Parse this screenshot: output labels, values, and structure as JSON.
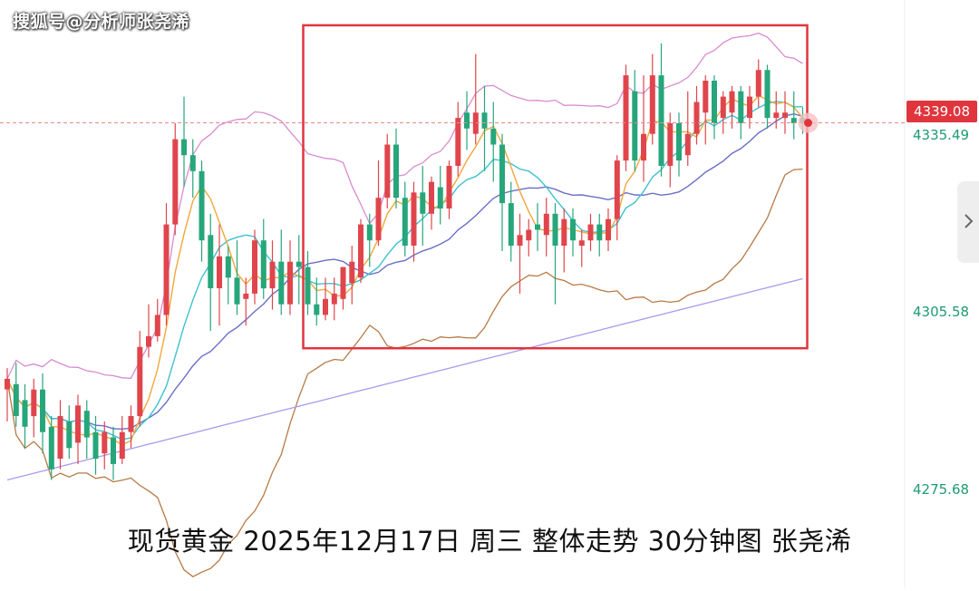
{
  "watermark": "搜狐号@分析师张尧浠",
  "caption": "现货黄金 2025年12月17日 周三 整体走势 30分钟图 张尧浠",
  "price_axis": {
    "current_price": "4339.08",
    "labels": [
      "4335.49",
      "4305.58",
      "4275.68"
    ]
  },
  "colors": {
    "up": "#e0454c",
    "down": "#26a67a",
    "ma5": "#f2a73a",
    "ma10": "#3ec1cf",
    "ma20": "#6a6fc4",
    "ma_long": "#a79af0",
    "boll_upper": "#d98bd0",
    "boll_lower": "#b77a45",
    "highlight_box": "#e0353d",
    "axis_text": "#1e9a72"
  },
  "icons": {
    "side_tab": "chevron-right-icon"
  },
  "chart_data": {
    "type": "candlestick",
    "symbol": "现货黄金",
    "timeframe": "30分钟图",
    "ylim": [
      4260,
      4355
    ],
    "current_price": 4339.08,
    "candles": [
      [
        4289,
        4291,
        4283,
        4293
      ],
      [
        4290,
        4284,
        4282,
        4294
      ],
      [
        4287,
        4282,
        4278,
        4290
      ],
      [
        4284,
        4289,
        4280,
        4291
      ],
      [
        4289,
        4281,
        4277,
        4292
      ],
      [
        4282,
        4274,
        4272,
        4284
      ],
      [
        4276,
        4284,
        4274,
        4287
      ],
      [
        4283,
        4278,
        4276,
        4286
      ],
      [
        4279,
        4286,
        4275,
        4288
      ],
      [
        4285,
        4280,
        4276,
        4287
      ],
      [
        4281,
        4276,
        4273,
        4284
      ],
      [
        4277,
        4281,
        4274,
        4283
      ],
      [
        4280,
        4275,
        4272,
        4282
      ],
      [
        4276,
        4281,
        4275,
        4284
      ],
      [
        4281,
        4284,
        4278,
        4286
      ],
      [
        4284,
        4297,
        4282,
        4300
      ],
      [
        4297,
        4299,
        4295,
        4305
      ],
      [
        4299,
        4303,
        4298,
        4306
      ],
      [
        4303,
        4320,
        4301,
        4324
      ],
      [
        4320,
        4336,
        4318,
        4339
      ],
      [
        4336,
        4333,
        4327,
        4344
      ],
      [
        4333,
        4330,
        4325,
        4336
      ],
      [
        4330,
        4317,
        4313,
        4332
      ],
      [
        4318,
        4308,
        4300,
        4322
      ],
      [
        4308,
        4314,
        4301,
        4320
      ],
      [
        4314,
        4310,
        4305,
        4316
      ],
      [
        4310,
        4305,
        4303,
        4317
      ],
      [
        4306,
        4307,
        4301,
        4310
      ],
      [
        4307,
        4317,
        4305,
        4319
      ],
      [
        4317,
        4308,
        4306,
        4321
      ],
      [
        4308,
        4313,
        4304,
        4317
      ],
      [
        4313,
        4305,
        4303,
        4319
      ],
      [
        4305,
        4313,
        4303,
        4317
      ],
      [
        4313,
        4312,
        4305,
        4318
      ],
      [
        4312,
        4305,
        4303,
        4315
      ],
      [
        4305,
        4303,
        4301,
        4310
      ],
      [
        4303,
        4306,
        4302,
        4310
      ],
      [
        4305,
        4307,
        4302,
        4310
      ],
      [
        4306,
        4312,
        4304,
        4312
      ],
      [
        4309,
        4313,
        4305,
        4316
      ],
      [
        4310,
        4320,
        4309,
        4321
      ],
      [
        4320,
        4317,
        4312,
        4322
      ],
      [
        4317,
        4325,
        4316,
        4332
      ],
      [
        4325,
        4335,
        4323,
        4337
      ],
      [
        4335,
        4325,
        4323,
        4338
      ],
      [
        4325,
        4316,
        4314,
        4328
      ],
      [
        4316,
        4326,
        4313,
        4328
      ],
      [
        4326,
        4322,
        4316,
        4331
      ],
      [
        4322,
        4328,
        4319,
        4329
      ],
      [
        4327,
        4323,
        4320,
        4331
      ],
      [
        4323,
        4331,
        4321,
        4332
      ],
      [
        4331,
        4340,
        4329,
        4343
      ],
      [
        4341,
        4338,
        4334,
        4345
      ],
      [
        4337,
        4341,
        4335,
        4352
      ],
      [
        4341,
        4338,
        4330,
        4346
      ],
      [
        4338,
        4335,
        4328,
        4343
      ],
      [
        4335,
        4324,
        4315,
        4337
      ],
      [
        4324,
        4316,
        4313,
        4328
      ],
      [
        4316,
        4318,
        4307,
        4322
      ],
      [
        4317,
        4319,
        4314,
        4321
      ],
      [
        4320,
        4319,
        4315,
        4324
      ],
      [
        4318,
        4322,
        4314,
        4325
      ],
      [
        4322,
        4316,
        4305,
        4324
      ],
      [
        4316,
        4321,
        4311,
        4323
      ],
      [
        4321,
        4317,
        4314,
        4323
      ],
      [
        4316,
        4317,
        4312,
        4319
      ],
      [
        4317,
        4320,
        4315,
        4322
      ],
      [
        4320,
        4317,
        4314,
        4322
      ],
      [
        4317,
        4321,
        4315,
        4323
      ],
      [
        4321,
        4332,
        4317,
        4333
      ],
      [
        4332,
        4348,
        4330,
        4350
      ],
      [
        4345,
        4332,
        4330,
        4349
      ],
      [
        4332,
        4337,
        4328,
        4348
      ],
      [
        4337,
        4348,
        4335,
        4352
      ],
      [
        4348,
        4331,
        4329,
        4354
      ],
      [
        4331,
        4339,
        4327,
        4341
      ],
      [
        4339,
        4332,
        4329,
        4341
      ],
      [
        4333,
        4337,
        4331,
        4345
      ],
      [
        4337,
        4343,
        4335,
        4346
      ],
      [
        4341,
        4347,
        4335,
        4348
      ],
      [
        4347,
        4339,
        4336,
        4348
      ],
      [
        4340,
        4344,
        4337,
        4345
      ],
      [
        4341,
        4345,
        4338,
        4346
      ],
      [
        4345,
        4339,
        4336,
        4346
      ],
      [
        4340,
        4344,
        4338,
        4346
      ],
      [
        4344,
        4349,
        4342,
        4351
      ],
      [
        4349,
        4340,
        4338,
        4350
      ],
      [
        4340,
        4341,
        4338,
        4345
      ],
      [
        4340,
        4341,
        4337,
        4345
      ],
      [
        4340,
        4339,
        4336,
        4345
      ],
      [
        4340,
        4339.08,
        4337,
        4342
      ]
    ],
    "highlight_box": {
      "from_candle": 34,
      "to_candle": 90
    }
  }
}
